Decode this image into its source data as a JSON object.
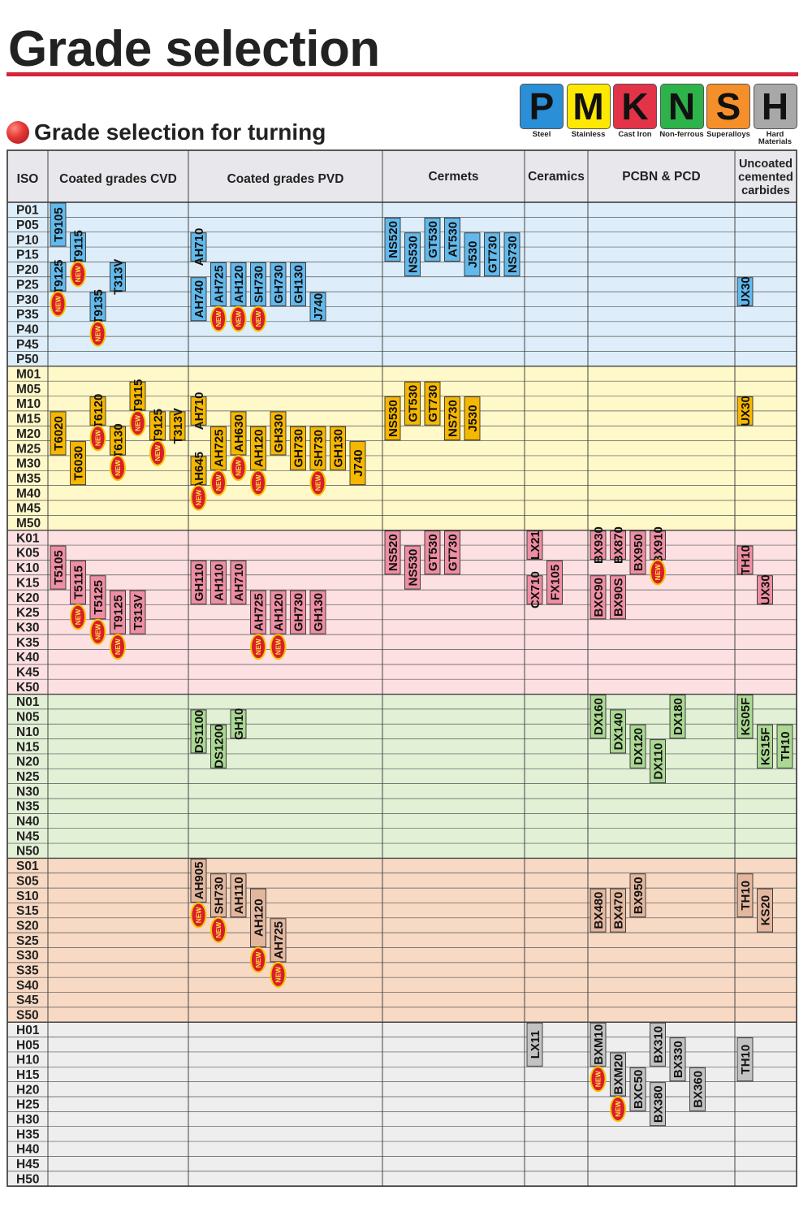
{
  "page": {
    "title": "Grade selection",
    "subtitle": "Grade selection for turning"
  },
  "iso_legend": [
    {
      "letter": "P",
      "label": "Steel",
      "color": "#2a8fd6"
    },
    {
      "letter": "M",
      "label": "Stainless",
      "color": "#ffe800"
    },
    {
      "letter": "K",
      "label": "Cast Iron",
      "color": "#e23348"
    },
    {
      "letter": "N",
      "label": "Non-ferrous",
      "color": "#2db34a"
    },
    {
      "letter": "S",
      "label": "Superalloys",
      "color": "#f58f2a"
    },
    {
      "letter": "H",
      "label": "Hard Materials",
      "color": "#a8a8a8"
    }
  ],
  "columns": [
    {
      "key": "iso",
      "label": "ISO"
    },
    {
      "key": "cvd",
      "label": "Coated grades CVD"
    },
    {
      "key": "pvd",
      "label": "Coated grades PVD"
    },
    {
      "key": "cermets",
      "label": "Cermets"
    },
    {
      "key": "ceramics",
      "label": "Ceramics"
    },
    {
      "key": "pcbn",
      "label": "PCBN & PCD"
    },
    {
      "key": "uncoated",
      "label": "Uncoated cemented carbides"
    }
  ],
  "new_label": "NEW",
  "groups": [
    {
      "letter": "P",
      "bg": "#ddeefa",
      "grade_color": "#62b9ec"
    },
    {
      "letter": "M",
      "bg": "#fff8c8",
      "grade_color": "#f6b700"
    },
    {
      "letter": "K",
      "bg": "#fde0e2",
      "grade_color": "#ee8ea3"
    },
    {
      "letter": "N",
      "bg": "#e2f0d6",
      "grade_color": "#abd893"
    },
    {
      "letter": "S",
      "bg": "#f7d9c4",
      "grade_color": "#e3b79e"
    },
    {
      "letter": "H",
      "bg": "#eeeeee",
      "grade_color": "#c2c2c2"
    }
  ],
  "codes": [
    "01",
    "05",
    "10",
    "15",
    "20",
    "25",
    "30",
    "35",
    "40",
    "45",
    "50"
  ],
  "grades": [
    {
      "name": "T9105",
      "g": "P",
      "col": "cvd",
      "from": 0,
      "to": 3
    },
    {
      "name": "T9115",
      "g": "P",
      "col": "cvd",
      "from": 2,
      "to": 4,
      "new": true
    },
    {
      "name": "T9125",
      "g": "P",
      "col": "cvd",
      "from": 4,
      "to": 6,
      "new": true
    },
    {
      "name": "T9135",
      "g": "P",
      "col": "cvd",
      "from": 6,
      "to": 8,
      "new": true
    },
    {
      "name": "T313V",
      "g": "P",
      "col": "cvd",
      "from": 4,
      "to": 6
    },
    {
      "name": "AH710",
      "g": "P",
      "col": "pvd",
      "from": 2,
      "to": 4
    },
    {
      "name": "AH725",
      "g": "P",
      "col": "pvd",
      "from": 4,
      "to": 7,
      "new": true
    },
    {
      "name": "AH120",
      "g": "P",
      "col": "pvd",
      "from": 4,
      "to": 7,
      "new": true
    },
    {
      "name": "SH730",
      "g": "P",
      "col": "pvd",
      "from": 4,
      "to": 7,
      "new": true
    },
    {
      "name": "GH730",
      "g": "P",
      "col": "pvd",
      "from": 4,
      "to": 7
    },
    {
      "name": "GH130",
      "g": "P",
      "col": "pvd",
      "from": 4,
      "to": 7
    },
    {
      "name": "AH740",
      "g": "P",
      "col": "pvd",
      "from": 5,
      "to": 8
    },
    {
      "name": "J740",
      "g": "P",
      "col": "pvd",
      "from": 6,
      "to": 8
    },
    {
      "name": "NS520",
      "g": "P",
      "col": "cermets",
      "from": 1,
      "to": 4
    },
    {
      "name": "NS530",
      "g": "P",
      "col": "cermets",
      "from": 2,
      "to": 5
    },
    {
      "name": "GT530",
      "g": "P",
      "col": "cermets",
      "from": 1,
      "to": 4
    },
    {
      "name": "AT530",
      "g": "P",
      "col": "cermets",
      "from": 1,
      "to": 4
    },
    {
      "name": "J530",
      "g": "P",
      "col": "cermets",
      "from": 2,
      "to": 5
    },
    {
      "name": "GT730",
      "g": "P",
      "col": "cermets",
      "from": 2,
      "to": 5
    },
    {
      "name": "NS730",
      "g": "P",
      "col": "cermets",
      "from": 2,
      "to": 5
    },
    {
      "name": "UX30",
      "g": "P",
      "col": "uncoated",
      "from": 5,
      "to": 7
    },
    {
      "name": "T6020",
      "g": "M",
      "col": "cvd",
      "from": 3,
      "to": 6
    },
    {
      "name": "T6030",
      "g": "M",
      "col": "cvd",
      "from": 5,
      "to": 8
    },
    {
      "name": "T6120",
      "g": "M",
      "col": "cvd",
      "from": 2,
      "to": 4,
      "new": true
    },
    {
      "name": "T6130",
      "g": "M",
      "col": "cvd",
      "from": 4,
      "to": 6,
      "new": true
    },
    {
      "name": "T9115",
      "g": "M",
      "col": "cvd",
      "from": 1,
      "to": 3,
      "new": true
    },
    {
      "name": "T9125",
      "g": "M",
      "col": "cvd",
      "from": 3,
      "to": 5,
      "new": true
    },
    {
      "name": "T313V",
      "g": "M",
      "col": "cvd",
      "from": 3,
      "to": 5
    },
    {
      "name": "AH710",
      "g": "M",
      "col": "pvd",
      "from": 2,
      "to": 4
    },
    {
      "name": "AH725",
      "g": "M",
      "col": "pvd",
      "from": 4,
      "to": 7,
      "new": true
    },
    {
      "name": "AH630",
      "g": "M",
      "col": "pvd",
      "from": 3,
      "to": 6,
      "new": true
    },
    {
      "name": "AH645",
      "g": "M",
      "col": "pvd",
      "from": 6,
      "to": 8,
      "new": true
    },
    {
      "name": "AH120",
      "g": "M",
      "col": "pvd",
      "from": 4,
      "to": 7,
      "new": true
    },
    {
      "name": "GH330",
      "g": "M",
      "col": "pvd",
      "from": 3,
      "to": 6
    },
    {
      "name": "GH730",
      "g": "M",
      "col": "pvd",
      "from": 4,
      "to": 7
    },
    {
      "name": "SH730",
      "g": "M",
      "col": "pvd",
      "from": 4,
      "to": 7,
      "new": true
    },
    {
      "name": "GH130",
      "g": "M",
      "col": "pvd",
      "from": 4,
      "to": 7
    },
    {
      "name": "J740",
      "g": "M",
      "col": "pvd",
      "from": 5,
      "to": 8
    },
    {
      "name": "NS530",
      "g": "M",
      "col": "cermets",
      "from": 2,
      "to": 5
    },
    {
      "name": "GT530",
      "g": "M",
      "col": "cermets",
      "from": 1,
      "to": 4
    },
    {
      "name": "GT730",
      "g": "M",
      "col": "cermets",
      "from": 1,
      "to": 4
    },
    {
      "name": "NS730",
      "g": "M",
      "col": "cermets",
      "from": 2,
      "to": 5
    },
    {
      "name": "J530",
      "g": "M",
      "col": "cermets",
      "from": 2,
      "to": 5
    },
    {
      "name": "UX30",
      "g": "M",
      "col": "uncoated",
      "from": 2,
      "to": 4
    },
    {
      "name": "T5105",
      "g": "K",
      "col": "cvd",
      "from": 1,
      "to": 4
    },
    {
      "name": "T5115",
      "g": "K",
      "col": "cvd",
      "from": 2,
      "to": 5,
      "new": true
    },
    {
      "name": "T5125",
      "g": "K",
      "col": "cvd",
      "from": 3,
      "to": 6,
      "new": true
    },
    {
      "name": "T9125",
      "g": "K",
      "col": "cvd",
      "from": 4,
      "to": 7,
      "new": true
    },
    {
      "name": "T313V",
      "g": "K",
      "col": "cvd",
      "from": 4,
      "to": 7
    },
    {
      "name": "GH110",
      "g": "K",
      "col": "pvd",
      "from": 2,
      "to": 5
    },
    {
      "name": "AH110",
      "g": "K",
      "col": "pvd",
      "from": 2,
      "to": 5
    },
    {
      "name": "AH710",
      "g": "K",
      "col": "pvd",
      "from": 2,
      "to": 5
    },
    {
      "name": "AH725",
      "g": "K",
      "col": "pvd",
      "from": 4,
      "to": 7,
      "new": true
    },
    {
      "name": "AH120",
      "g": "K",
      "col": "pvd",
      "from": 4,
      "to": 7,
      "new": true
    },
    {
      "name": "GH730",
      "g": "K",
      "col": "pvd",
      "from": 4,
      "to": 7
    },
    {
      "name": "GH130",
      "g": "K",
      "col": "pvd",
      "from": 4,
      "to": 7
    },
    {
      "name": "NS520",
      "g": "K",
      "col": "cermets",
      "from": 0,
      "to": 3
    },
    {
      "name": "NS530",
      "g": "K",
      "col": "cermets",
      "from": 1,
      "to": 4
    },
    {
      "name": "GT530",
      "g": "K",
      "col": "cermets",
      "from": 0,
      "to": 3
    },
    {
      "name": "GT730",
      "g": "K",
      "col": "cermets",
      "from": 0,
      "to": 3
    },
    {
      "name": "LX21",
      "g": "K",
      "col": "ceramics",
      "from": 0,
      "to": 2
    },
    {
      "name": "FX105",
      "g": "K",
      "col": "ceramics",
      "from": 2,
      "to": 5
    },
    {
      "name": "CX710",
      "g": "K",
      "col": "ceramics",
      "from": 3,
      "to": 5
    },
    {
      "name": "BXC90",
      "g": "K",
      "col": "pcbn",
      "from": 3,
      "to": 6
    },
    {
      "name": "BX90S",
      "g": "K",
      "col": "pcbn",
      "from": 3,
      "to": 6
    },
    {
      "name": "BX930",
      "g": "K",
      "col": "pcbn",
      "from": 0,
      "to": 2
    },
    {
      "name": "BX950",
      "g": "K",
      "col": "pcbn",
      "from": 0,
      "to": 3
    },
    {
      "name": "BX870",
      "g": "K",
      "col": "pcbn",
      "from": 0,
      "to": 2
    },
    {
      "name": "BX910",
      "g": "K",
      "col": "pcbn",
      "from": 0,
      "to": 2,
      "new": true
    },
    {
      "name": "TH10",
      "g": "K",
      "col": "uncoated",
      "from": 1,
      "to": 3
    },
    {
      "name": "UX30",
      "g": "K",
      "col": "uncoated",
      "from": 3,
      "to": 5
    },
    {
      "name": "DS1100",
      "g": "N",
      "col": "pvd",
      "from": 1,
      "to": 4
    },
    {
      "name": "DS1200",
      "g": "N",
      "col": "pvd",
      "from": 2,
      "to": 5
    },
    {
      "name": "GH10",
      "g": "N",
      "col": "pvd",
      "from": 1,
      "to": 3
    },
    {
      "name": "DX160",
      "g": "N",
      "col": "pcbn",
      "from": 0,
      "to": 3
    },
    {
      "name": "DX140",
      "g": "N",
      "col": "pcbn",
      "from": 1,
      "to": 4
    },
    {
      "name": "DX120",
      "g": "N",
      "col": "pcbn",
      "from": 2,
      "to": 5
    },
    {
      "name": "DX110",
      "g": "N",
      "col": "pcbn",
      "from": 3,
      "to": 6
    },
    {
      "name": "DX180",
      "g": "N",
      "col": "pcbn",
      "from": 0,
      "to": 3
    },
    {
      "name": "KS05F",
      "g": "N",
      "col": "uncoated",
      "from": 0,
      "to": 3
    },
    {
      "name": "KS15F",
      "g": "N",
      "col": "uncoated",
      "from": 2,
      "to": 5
    },
    {
      "name": "TH10",
      "g": "N",
      "col": "uncoated",
      "from": 2,
      "to": 5
    },
    {
      "name": "AH905",
      "g": "S",
      "col": "pvd",
      "from": 0,
      "to": 3,
      "new": true
    },
    {
      "name": "SH730",
      "g": "S",
      "col": "pvd",
      "from": 1,
      "to": 4,
      "new": true
    },
    {
      "name": "AH110",
      "g": "S",
      "col": "pvd",
      "from": 1,
      "to": 4
    },
    {
      "name": "AH120",
      "g": "S",
      "col": "pvd",
      "from": 2,
      "to": 6,
      "new": true
    },
    {
      "name": "AH725",
      "g": "S",
      "col": "pvd",
      "from": 4,
      "to": 7,
      "new": true
    },
    {
      "name": "BX480",
      "g": "S",
      "col": "pcbn",
      "from": 2,
      "to": 5
    },
    {
      "name": "BX470",
      "g": "S",
      "col": "pcbn",
      "from": 2,
      "to": 5
    },
    {
      "name": "BX950",
      "g": "S",
      "col": "pcbn",
      "from": 1,
      "to": 4
    },
    {
      "name": "TH10",
      "g": "S",
      "col": "uncoated",
      "from": 1,
      "to": 4
    },
    {
      "name": "KS20",
      "g": "S",
      "col": "uncoated",
      "from": 2,
      "to": 5
    },
    {
      "name": "LX11",
      "g": "H",
      "col": "ceramics",
      "from": 0,
      "to": 3
    },
    {
      "name": "BXM10",
      "g": "H",
      "col": "pcbn",
      "from": 0,
      "to": 3,
      "new": true
    },
    {
      "name": "BXM20",
      "g": "H",
      "col": "pcbn",
      "from": 2,
      "to": 5,
      "new": true
    },
    {
      "name": "BXC50",
      "g": "H",
      "col": "pcbn",
      "from": 3,
      "to": 6
    },
    {
      "name": "BX310",
      "g": "H",
      "col": "pcbn",
      "from": 0,
      "to": 3
    },
    {
      "name": "BX330",
      "g": "H",
      "col": "pcbn",
      "from": 1,
      "to": 4
    },
    {
      "name": "BX360",
      "g": "H",
      "col": "pcbn",
      "from": 3,
      "to": 6
    },
    {
      "name": "BX380",
      "g": "H",
      "col": "pcbn",
      "from": 4,
      "to": 7
    },
    {
      "name": "TH10",
      "g": "H",
      "col": "uncoated",
      "from": 1,
      "to": 4
    }
  ]
}
